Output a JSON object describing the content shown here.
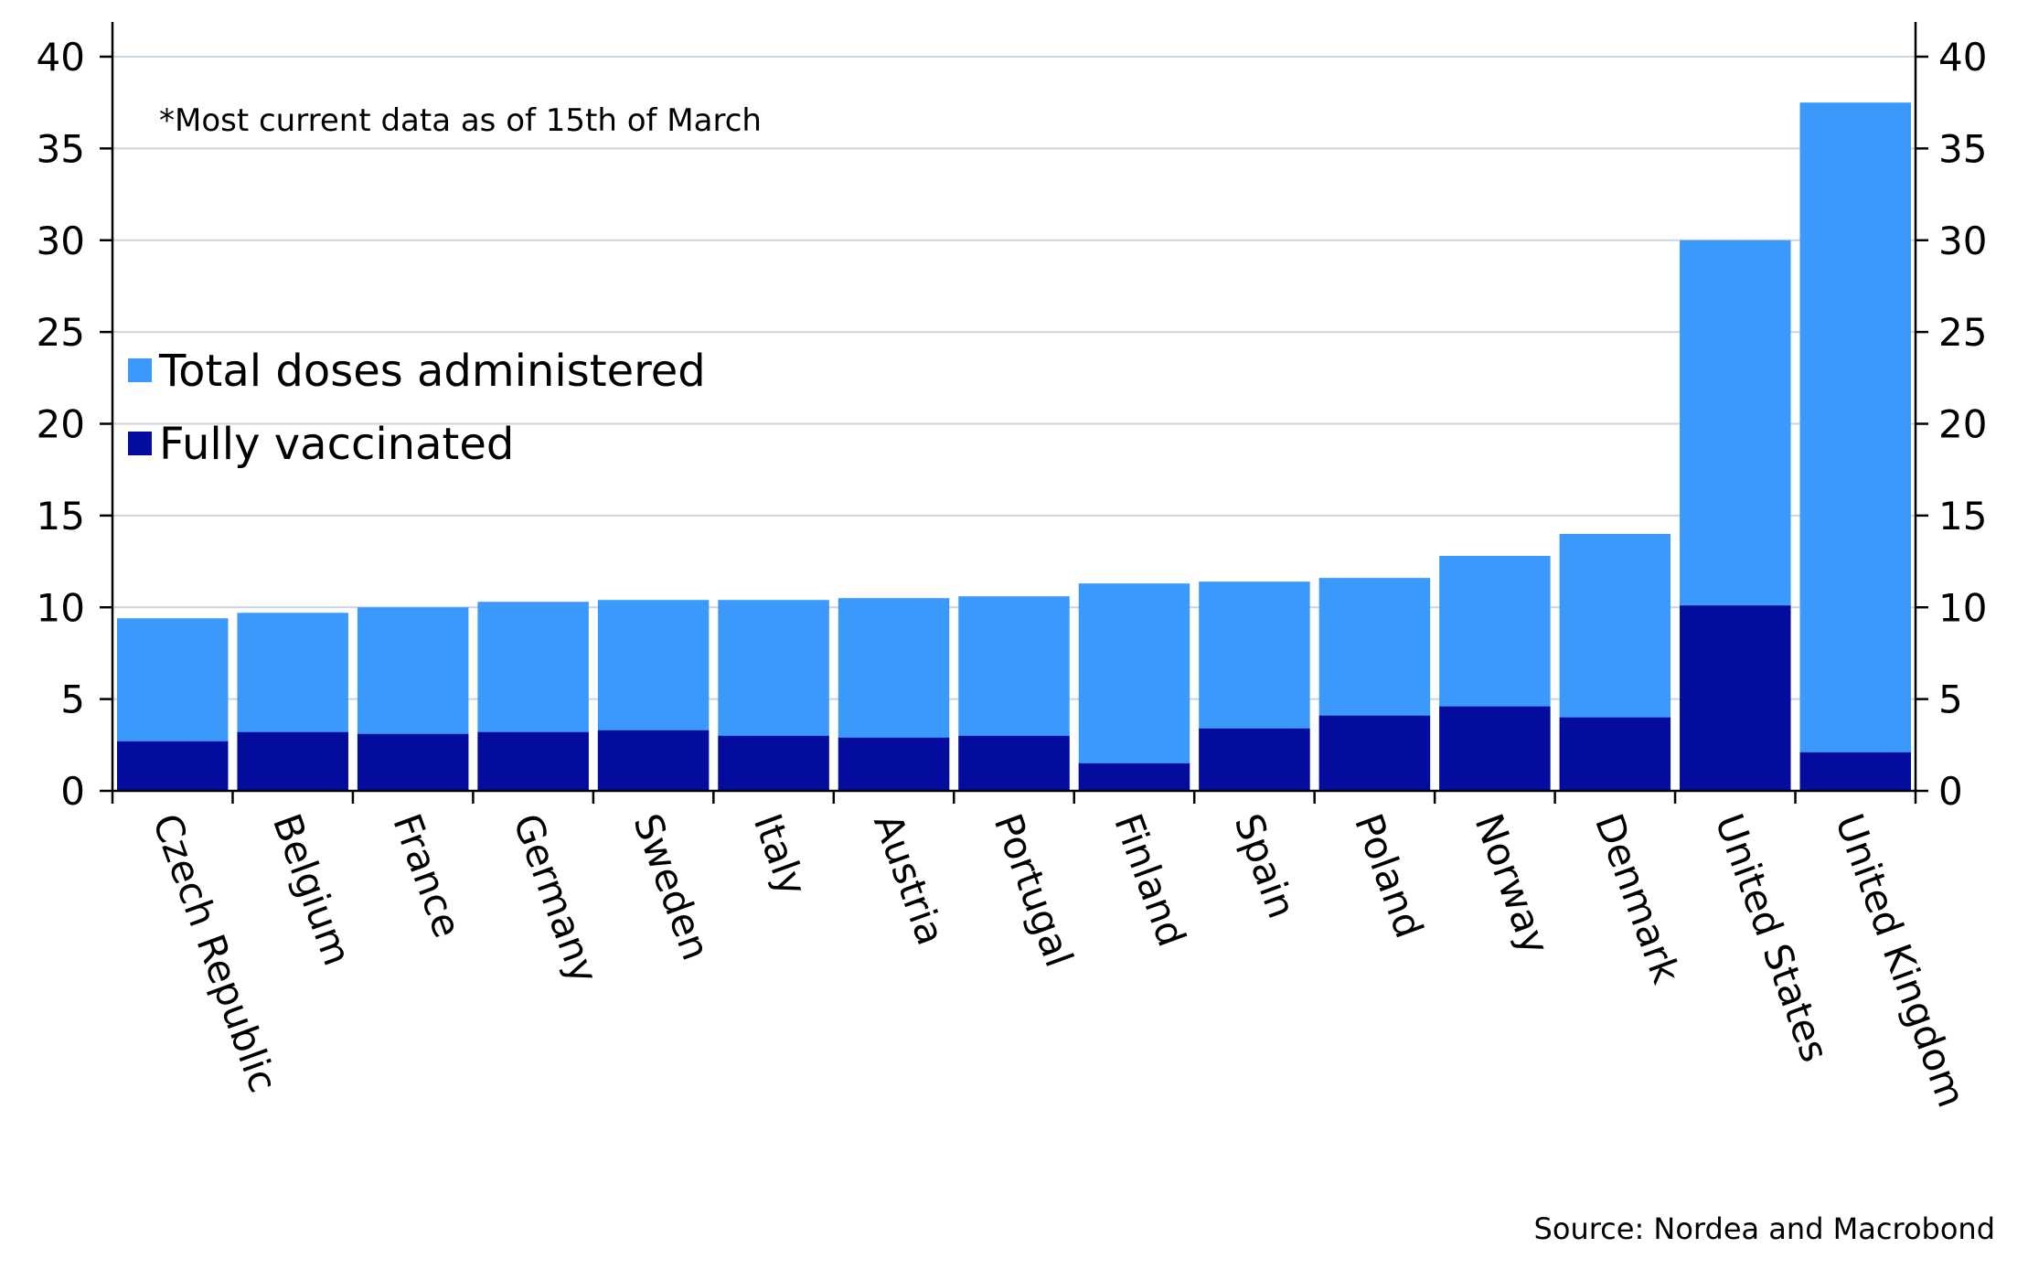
{
  "chart_data": {
    "type": "bar",
    "stacked": "overlay",
    "categories": [
      "Czech Republic",
      "Belgium",
      "France",
      "Germany",
      "Sweden",
      "Italy",
      "Austria",
      "Portugal",
      "Finland",
      "Spain",
      "Poland",
      "Norway",
      "Denmark",
      "United States",
      "United Kingdom"
    ],
    "series": [
      {
        "name": "Total doses administered",
        "color": "#3a99fb",
        "values": [
          9.4,
          9.7,
          10.0,
          10.3,
          10.4,
          10.4,
          10.5,
          10.6,
          11.3,
          11.4,
          11.6,
          12.8,
          14.0,
          30.0,
          37.5
        ]
      },
      {
        "name": "Fully vaccinated",
        "color": "#030c9c",
        "values": [
          2.7,
          3.2,
          3.1,
          3.2,
          3.3,
          3.0,
          2.9,
          3.0,
          1.5,
          3.4,
          4.1,
          4.6,
          4.0,
          10.1,
          2.1
        ]
      }
    ],
    "yticks": [
      0,
      5,
      10,
      15,
      20,
      25,
      30,
      35,
      40
    ],
    "ylim": [
      0,
      42
    ],
    "grid": true,
    "legend_position": "left-middle",
    "note": "*Most current data as of 15th of March",
    "source": "Source: Nordea and Macrobond",
    "gridline_color": "#c9d6df"
  }
}
